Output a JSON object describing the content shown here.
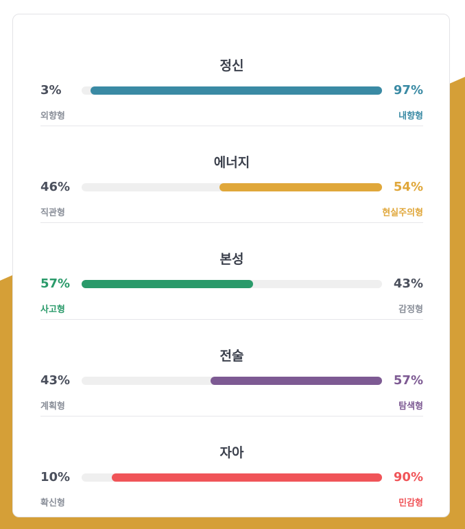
{
  "colors": {
    "accent_bg": "#d59f37",
    "neutral": "#4a4f5c",
    "muted": "#8a8f99"
  },
  "traits": [
    {
      "title": "정신",
      "left_pct": "3%",
      "left_label": "외향형",
      "right_pct": "97%",
      "right_label": "내향형",
      "dominant": "right",
      "dominant_value": 97,
      "color": "#3a8aa4"
    },
    {
      "title": "에너지",
      "left_pct": "46%",
      "left_label": "직관형",
      "right_pct": "54%",
      "right_label": "현실주의형",
      "dominant": "right",
      "dominant_value": 54,
      "color": "#e0a73a"
    },
    {
      "title": "본성",
      "left_pct": "57%",
      "left_label": "사고형",
      "right_pct": "43%",
      "right_label": "감정형",
      "dominant": "left",
      "dominant_value": 57,
      "color": "#2a9a6a"
    },
    {
      "title": "전술",
      "left_pct": "43%",
      "left_label": "계획형",
      "right_pct": "57%",
      "right_label": "탐색형",
      "dominant": "right",
      "dominant_value": 57,
      "color": "#7d5a93"
    },
    {
      "title": "자아",
      "left_pct": "10%",
      "left_label": "확신형",
      "right_pct": "90%",
      "right_label": "민감형",
      "dominant": "right",
      "dominant_value": 90,
      "color": "#f05458"
    }
  ]
}
